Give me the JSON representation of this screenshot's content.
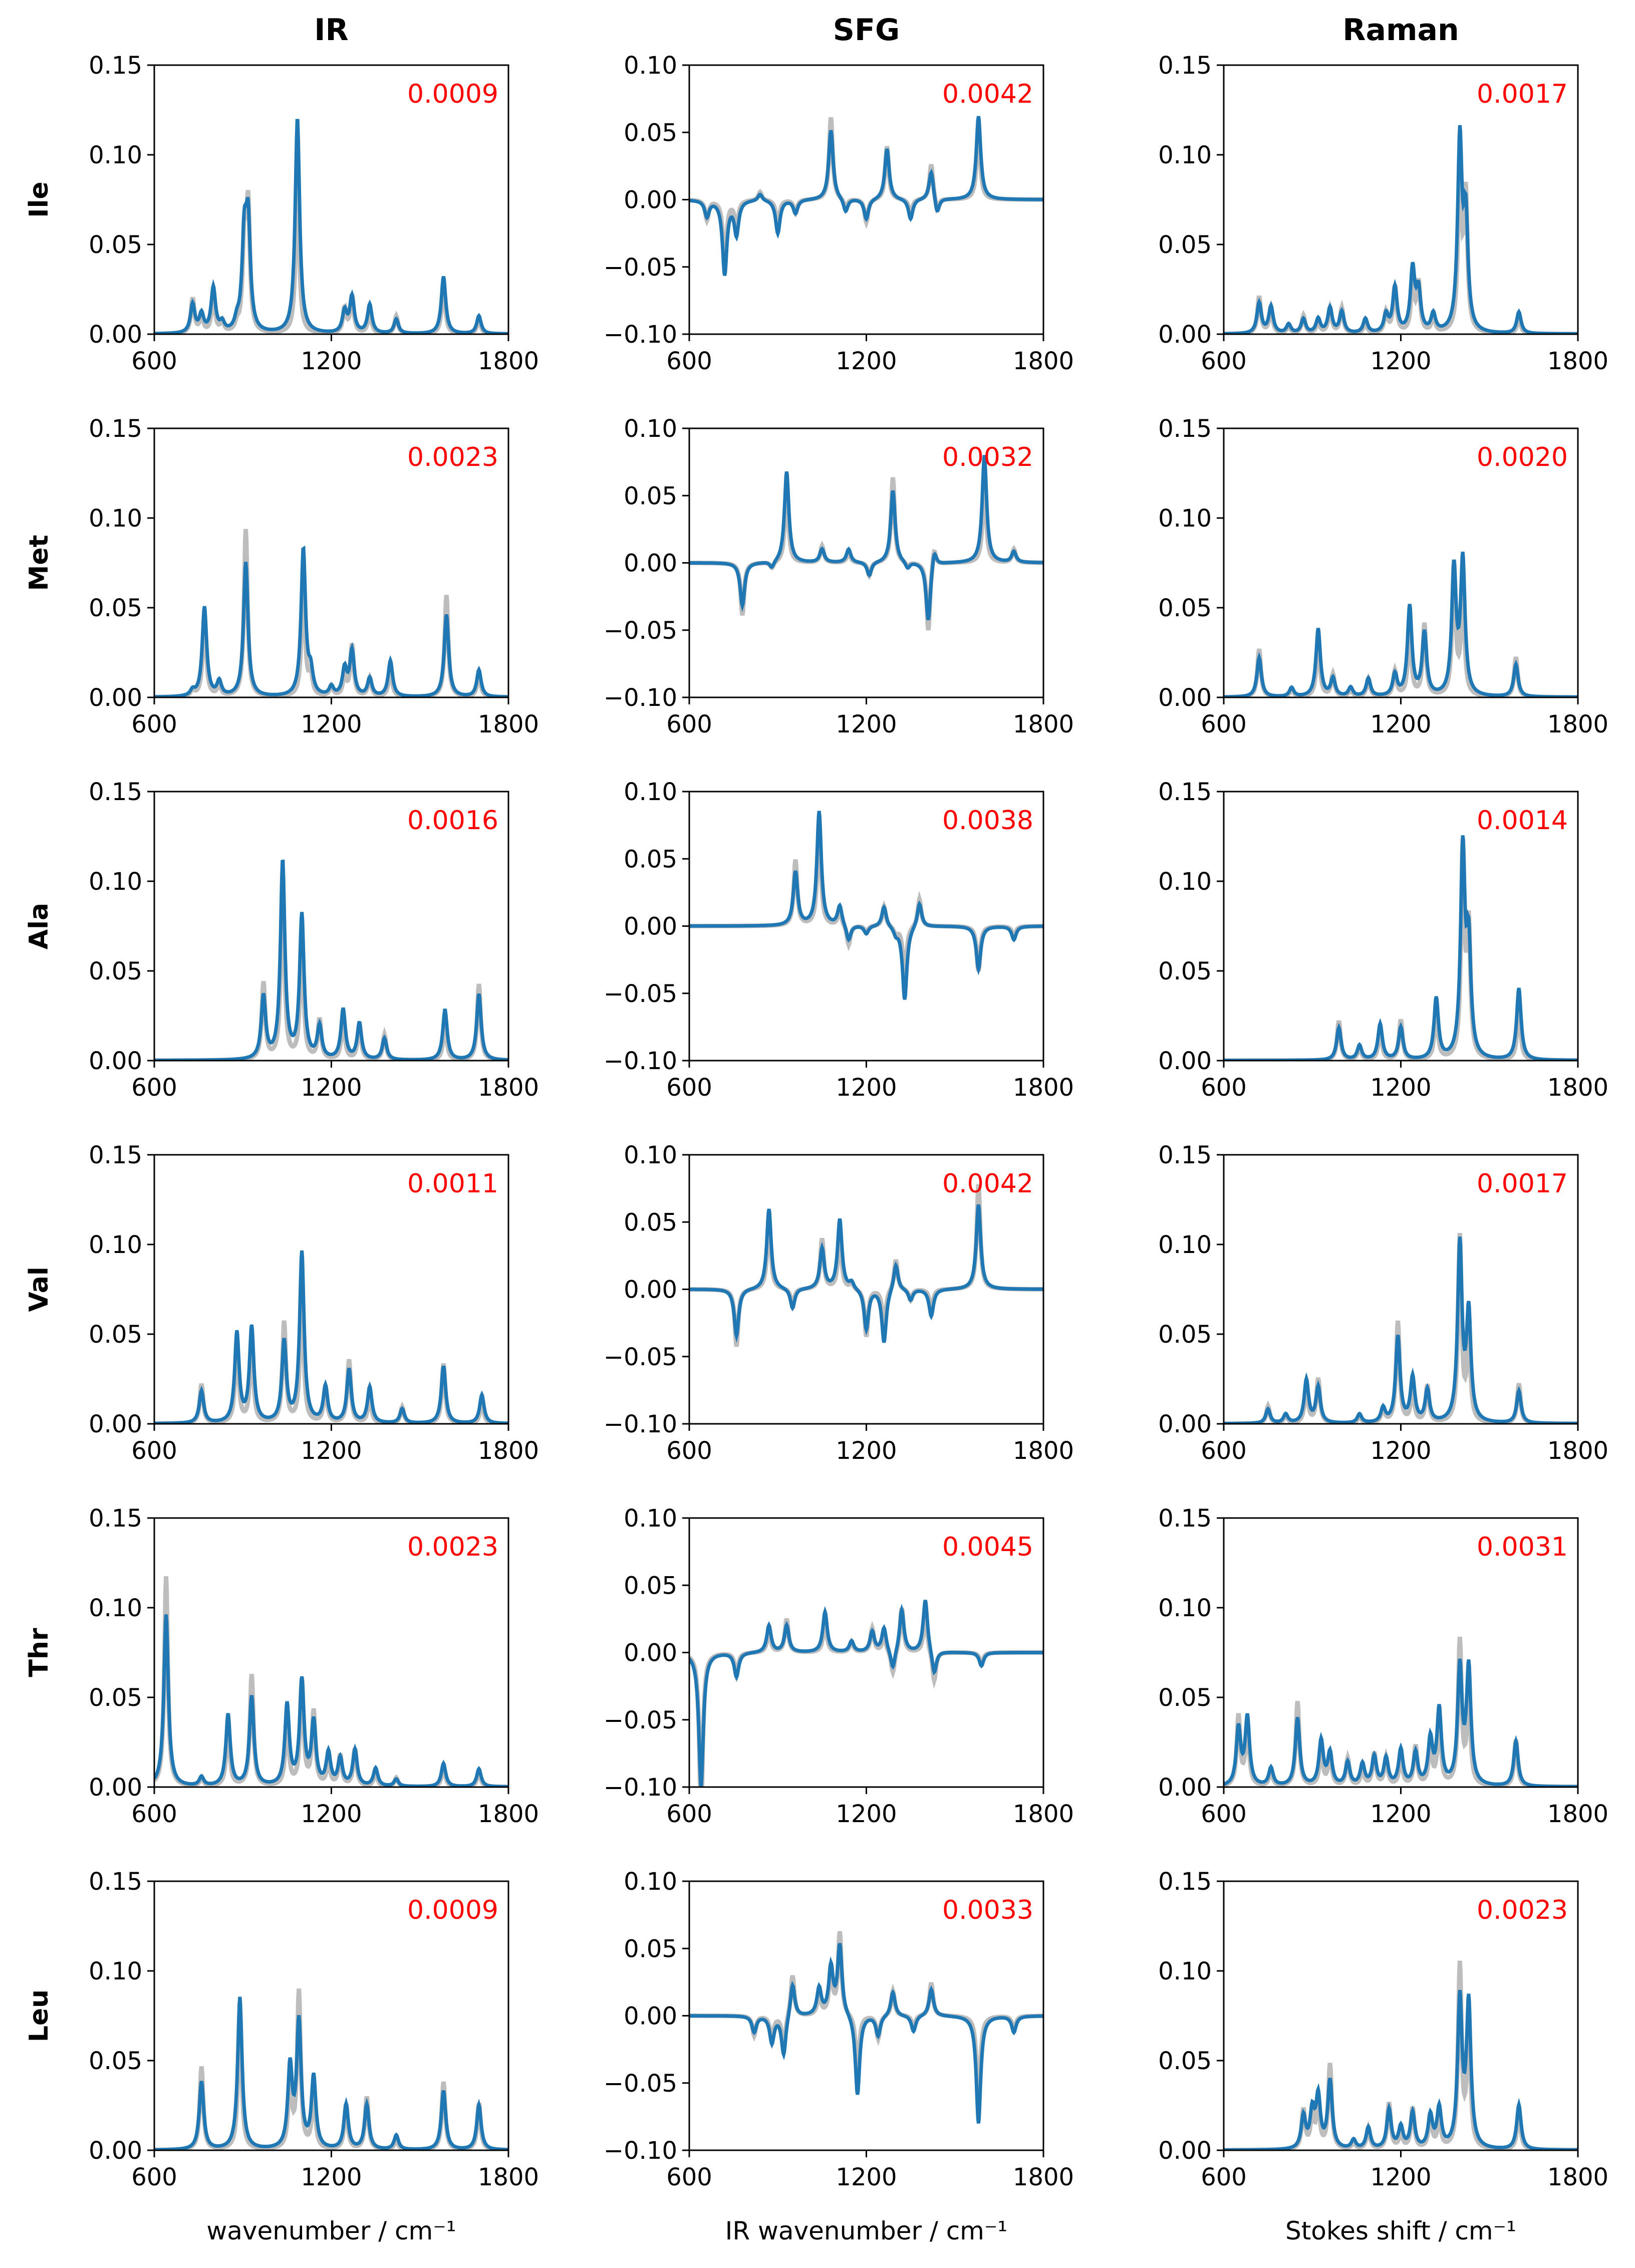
{
  "colors": {
    "predicted": "#1f77b4",
    "reference": "#bdbdbd",
    "error_text": "#ff0000",
    "axis": "#000000"
  },
  "chart_data": {
    "type": "line",
    "column_titles": [
      "IR",
      "SFG",
      "Raman"
    ],
    "row_labels": [
      "Ile",
      "Met",
      "Ala",
      "Val",
      "Thr",
      "Leu"
    ],
    "xlabels": [
      "wavenumber / cm⁻¹",
      "IR wavenumber / cm⁻¹",
      "Stokes shift / cm⁻¹"
    ],
    "xlim": [
      600,
      1800
    ],
    "xticks": [
      "600",
      "1200",
      "1800"
    ],
    "ylim": {
      "IR": [
        0,
        0.15
      ],
      "SFG": [
        -0.1,
        0.1
      ],
      "Raman": [
        0,
        0.15
      ]
    },
    "yticks": {
      "IR": [
        "0.00",
        "0.05",
        "0.10",
        "0.15"
      ],
      "SFG": [
        "−0.10",
        "−0.05",
        "0.00",
        "0.05",
        "0.10"
      ],
      "Raman": [
        "0.00",
        "0.05",
        "0.10",
        "0.15"
      ]
    },
    "series_legend": "blue = predicted spectrum, grey = reference spectrum (no legend shown)",
    "errors": [
      [
        "0.0009",
        "0.0042",
        "0.0017"
      ],
      [
        "0.0023",
        "0.0032",
        "0.0020"
      ],
      [
        "0.0016",
        "0.0038",
        "0.0014"
      ],
      [
        "0.0011",
        "0.0042",
        "0.0017"
      ],
      [
        "0.0023",
        "0.0045",
        "0.0031"
      ],
      [
        "0.0009",
        "0.0033",
        "0.0023"
      ]
    ],
    "peaks": {
      "IR": [
        [
          [
            730,
            0.016
          ],
          [
            760,
            0.01
          ],
          [
            800,
            0.025
          ],
          [
            830,
            0.005
          ],
          [
            880,
            0.005
          ],
          [
            905,
            0.05
          ],
          [
            918,
            0.058
          ],
          [
            1085,
            0.12
          ],
          [
            1245,
            0.012
          ],
          [
            1270,
            0.02
          ],
          [
            1330,
            0.016
          ],
          [
            1420,
            0.008
          ],
          [
            1580,
            0.032
          ],
          [
            1700,
            0.01
          ]
        ],
        [
          [
            730,
            0.003
          ],
          [
            770,
            0.05
          ],
          [
            820,
            0.008
          ],
          [
            910,
            0.075
          ],
          [
            1105,
            0.082
          ],
          [
            1130,
            0.012
          ],
          [
            1200,
            0.005
          ],
          [
            1245,
            0.015
          ],
          [
            1270,
            0.025
          ],
          [
            1330,
            0.01
          ],
          [
            1400,
            0.02
          ],
          [
            1590,
            0.046
          ],
          [
            1700,
            0.015
          ]
        ],
        [
          [
            970,
            0.035
          ],
          [
            1035,
            0.11
          ],
          [
            1100,
            0.08
          ],
          [
            1160,
            0.018
          ],
          [
            1240,
            0.028
          ],
          [
            1295,
            0.02
          ],
          [
            1380,
            0.012
          ],
          [
            1585,
            0.028
          ],
          [
            1700,
            0.037
          ]
        ],
        [
          [
            760,
            0.018
          ],
          [
            880,
            0.05
          ],
          [
            930,
            0.053
          ],
          [
            1040,
            0.045
          ],
          [
            1100,
            0.095
          ],
          [
            1180,
            0.02
          ],
          [
            1260,
            0.03
          ],
          [
            1330,
            0.02
          ],
          [
            1440,
            0.008
          ],
          [
            1580,
            0.032
          ],
          [
            1710,
            0.016
          ]
        ],
        [
          [
            640,
            0.096
          ],
          [
            760,
            0.005
          ],
          [
            850,
            0.04
          ],
          [
            930,
            0.05
          ],
          [
            1050,
            0.045
          ],
          [
            1100,
            0.058
          ],
          [
            1140,
            0.035
          ],
          [
            1190,
            0.018
          ],
          [
            1230,
            0.015
          ],
          [
            1280,
            0.02
          ],
          [
            1350,
            0.01
          ],
          [
            1420,
            0.004
          ],
          [
            1580,
            0.013
          ],
          [
            1700,
            0.01
          ]
        ],
        [
          [
            760,
            0.038
          ],
          [
            890,
            0.085
          ],
          [
            1060,
            0.045
          ],
          [
            1090,
            0.07
          ],
          [
            1140,
            0.04
          ],
          [
            1250,
            0.025
          ],
          [
            1320,
            0.025
          ],
          [
            1420,
            0.008
          ],
          [
            1580,
            0.033
          ],
          [
            1700,
            0.025
          ]
        ]
      ],
      "SFG": [
        [
          [
            660,
            -0.012
          ],
          [
            720,
            -0.055
          ],
          [
            760,
            -0.025
          ],
          [
            840,
            0.005
          ],
          [
            900,
            -0.025
          ],
          [
            960,
            -0.01
          ],
          [
            1080,
            0.052
          ],
          [
            1130,
            -0.01
          ],
          [
            1200,
            -0.015
          ],
          [
            1270,
            0.038
          ],
          [
            1350,
            -0.015
          ],
          [
            1420,
            0.022
          ],
          [
            1440,
            -0.012
          ],
          [
            1580,
            0.062
          ]
        ],
        [
          [
            780,
            -0.032
          ],
          [
            880,
            -0.005
          ],
          [
            930,
            0.068
          ],
          [
            1050,
            0.01
          ],
          [
            1140,
            0.01
          ],
          [
            1210,
            -0.01
          ],
          [
            1290,
            0.054
          ],
          [
            1340,
            -0.005
          ],
          [
            1410,
            -0.045
          ],
          [
            1430,
            0.013
          ],
          [
            1600,
            0.08
          ],
          [
            1700,
            0.008
          ]
        ],
        [
          [
            960,
            0.04
          ],
          [
            1040,
            0.085
          ],
          [
            1110,
            0.015
          ],
          [
            1140,
            -0.012
          ],
          [
            1200,
            -0.006
          ],
          [
            1260,
            0.015
          ],
          [
            1300,
            -0.005
          ],
          [
            1330,
            -0.055
          ],
          [
            1380,
            0.018
          ],
          [
            1580,
            -0.032
          ],
          [
            1700,
            -0.01
          ]
        ],
        [
          [
            760,
            -0.035
          ],
          [
            870,
            0.06
          ],
          [
            950,
            -0.015
          ],
          [
            1050,
            0.03
          ],
          [
            1110,
            0.052
          ],
          [
            1150,
            0.005
          ],
          [
            1200,
            -0.03
          ],
          [
            1260,
            -0.04
          ],
          [
            1300,
            0.02
          ],
          [
            1350,
            -0.008
          ],
          [
            1420,
            -0.02
          ],
          [
            1580,
            0.063
          ]
        ],
        [
          [
            640,
            -0.1
          ],
          [
            760,
            -0.018
          ],
          [
            870,
            0.02
          ],
          [
            930,
            0.02
          ],
          [
            1060,
            0.03
          ],
          [
            1150,
            0.008
          ],
          [
            1220,
            0.015
          ],
          [
            1260,
            0.018
          ],
          [
            1290,
            -0.015
          ],
          [
            1320,
            0.032
          ],
          [
            1400,
            0.04
          ],
          [
            1430,
            -0.018
          ],
          [
            1590,
            -0.01
          ]
        ],
        [
          [
            820,
            -0.012
          ],
          [
            880,
            -0.02
          ],
          [
            920,
            -0.03
          ],
          [
            950,
            0.025
          ],
          [
            1040,
            0.02
          ],
          [
            1080,
            0.035
          ],
          [
            1110,
            0.052
          ],
          [
            1170,
            -0.06
          ],
          [
            1240,
            -0.015
          ],
          [
            1290,
            0.018
          ],
          [
            1360,
            -0.012
          ],
          [
            1420,
            0.02
          ],
          [
            1580,
            -0.08
          ],
          [
            1700,
            -0.012
          ]
        ]
      ],
      "Raman": [
        [
          [
            720,
            0.017
          ],
          [
            760,
            0.015
          ],
          [
            820,
            0.005
          ],
          [
            870,
            0.008
          ],
          [
            920,
            0.008
          ],
          [
            960,
            0.014
          ],
          [
            1000,
            0.012
          ],
          [
            1080,
            0.008
          ],
          [
            1150,
            0.01
          ],
          [
            1180,
            0.025
          ],
          [
            1240,
            0.035
          ],
          [
            1260,
            0.022
          ],
          [
            1310,
            0.01
          ],
          [
            1400,
            0.106
          ],
          [
            1420,
            0.06
          ],
          [
            1600,
            0.012
          ]
        ],
        [
          [
            720,
            0.022
          ],
          [
            830,
            0.005
          ],
          [
            920,
            0.038
          ],
          [
            970,
            0.01
          ],
          [
            1030,
            0.005
          ],
          [
            1090,
            0.01
          ],
          [
            1180,
            0.012
          ],
          [
            1230,
            0.05
          ],
          [
            1280,
            0.035
          ],
          [
            1380,
            0.07
          ],
          [
            1410,
            0.075
          ],
          [
            1590,
            0.018
          ]
        ],
        [
          [
            990,
            0.018
          ],
          [
            1060,
            0.008
          ],
          [
            1130,
            0.02
          ],
          [
            1200,
            0.018
          ],
          [
            1320,
            0.034
          ],
          [
            1410,
            0.115
          ],
          [
            1430,
            0.06
          ],
          [
            1600,
            0.04
          ]
        ],
        [
          [
            750,
            0.008
          ],
          [
            810,
            0.005
          ],
          [
            880,
            0.024
          ],
          [
            920,
            0.02
          ],
          [
            1060,
            0.005
          ],
          [
            1140,
            0.008
          ],
          [
            1190,
            0.048
          ],
          [
            1240,
            0.025
          ],
          [
            1290,
            0.018
          ],
          [
            1400,
            0.099
          ],
          [
            1430,
            0.06
          ],
          [
            1600,
            0.018
          ]
        ],
        [
          [
            650,
            0.032
          ],
          [
            680,
            0.038
          ],
          [
            760,
            0.01
          ],
          [
            850,
            0.038
          ],
          [
            930,
            0.025
          ],
          [
            960,
            0.018
          ],
          [
            1020,
            0.013
          ],
          [
            1070,
            0.012
          ],
          [
            1110,
            0.016
          ],
          [
            1150,
            0.015
          ],
          [
            1200,
            0.02
          ],
          [
            1250,
            0.018
          ],
          [
            1300,
            0.025
          ],
          [
            1330,
            0.042
          ],
          [
            1400,
            0.065
          ],
          [
            1430,
            0.065
          ],
          [
            1590,
            0.025
          ]
        ],
        [
          [
            870,
            0.018
          ],
          [
            900,
            0.02
          ],
          [
            920,
            0.028
          ],
          [
            960,
            0.038
          ],
          [
            1040,
            0.005
          ],
          [
            1090,
            0.012
          ],
          [
            1160,
            0.022
          ],
          [
            1200,
            0.012
          ],
          [
            1240,
            0.02
          ],
          [
            1300,
            0.018
          ],
          [
            1330,
            0.022
          ],
          [
            1400,
            0.082
          ],
          [
            1430,
            0.08
          ],
          [
            1600,
            0.025
          ]
        ]
      ]
    }
  }
}
